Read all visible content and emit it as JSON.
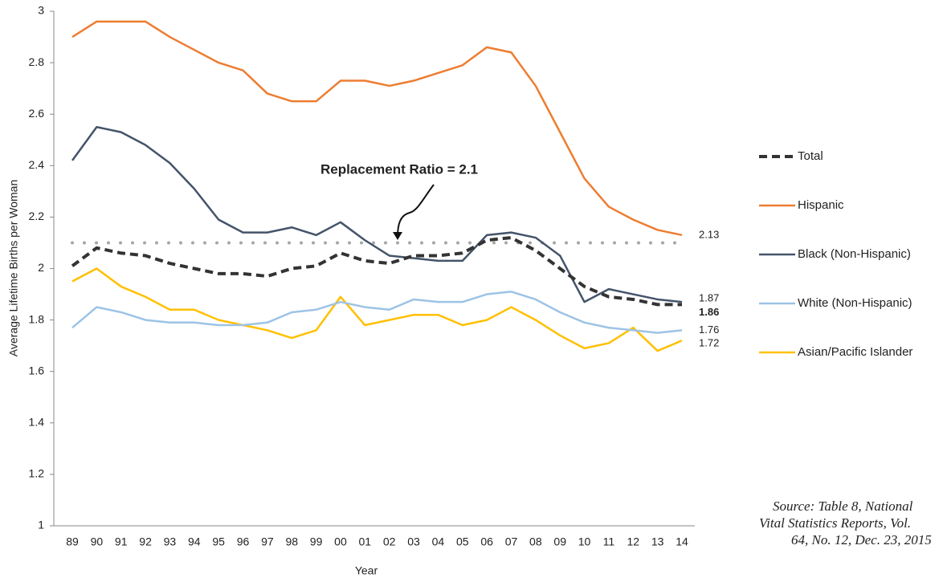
{
  "chart_data": {
    "type": "line",
    "y_label": "Average Lifetime Births per Woman",
    "x_label": "Year",
    "categories": [
      "89",
      "90",
      "91",
      "92",
      "93",
      "94",
      "95",
      "96",
      "97",
      "98",
      "99",
      "00",
      "01",
      "02",
      "03",
      "04",
      "05",
      "06",
      "07",
      "08",
      "09",
      "10",
      "11",
      "12",
      "13",
      "14"
    ],
    "series": [
      {
        "name": "Total",
        "color": "#333333",
        "style": "dashed",
        "values": [
          2.01,
          2.08,
          2.06,
          2.05,
          2.02,
          2.0,
          1.98,
          1.98,
          1.97,
          2.0,
          2.01,
          2.06,
          2.03,
          2.02,
          2.05,
          2.05,
          2.06,
          2.11,
          2.12,
          2.07,
          2.0,
          1.93,
          1.89,
          1.88,
          1.86,
          1.86
        ]
      },
      {
        "name": "Hispanic",
        "color": "#ed7d31",
        "style": "solid",
        "values": [
          2.9,
          2.96,
          2.96,
          2.96,
          2.9,
          2.85,
          2.8,
          2.77,
          2.68,
          2.65,
          2.65,
          2.73,
          2.73,
          2.71,
          2.73,
          2.76,
          2.79,
          2.86,
          2.84,
          2.71,
          2.53,
          2.35,
          2.24,
          2.19,
          2.15,
          2.13
        ]
      },
      {
        "name": "Black (Non-Hispanic)",
        "color": "#44546a",
        "style": "solid",
        "values": [
          2.42,
          2.55,
          2.53,
          2.48,
          2.41,
          2.31,
          2.19,
          2.14,
          2.14,
          2.16,
          2.13,
          2.18,
          2.11,
          2.05,
          2.04,
          2.03,
          2.03,
          2.13,
          2.14,
          2.12,
          2.05,
          1.87,
          1.92,
          1.9,
          1.88,
          1.87
        ]
      },
      {
        "name": "White (Non-Hispanic)",
        "color": "#9dc3e6",
        "style": "solid",
        "values": [
          1.77,
          1.85,
          1.83,
          1.8,
          1.79,
          1.79,
          1.78,
          1.78,
          1.79,
          1.83,
          1.84,
          1.87,
          1.85,
          1.84,
          1.88,
          1.87,
          1.87,
          1.9,
          1.91,
          1.88,
          1.83,
          1.79,
          1.77,
          1.76,
          1.75,
          1.76
        ]
      },
      {
        "name": "Asian/Pacific Islander",
        "color": "#ffc000",
        "style": "solid",
        "values": [
          1.95,
          2.0,
          1.93,
          1.89,
          1.84,
          1.84,
          1.8,
          1.78,
          1.76,
          1.73,
          1.76,
          1.89,
          1.78,
          1.8,
          1.82,
          1.82,
          1.78,
          1.8,
          1.85,
          1.8,
          1.74,
          1.69,
          1.71,
          1.77,
          1.68,
          1.72
        ]
      }
    ],
    "ylim": [
      1,
      3
    ],
    "yticks": [
      1,
      1.2,
      1.4,
      1.6,
      1.8,
      2,
      2.2,
      2.4,
      2.6,
      2.8,
      3
    ],
    "grid": false,
    "legend": "right",
    "reference_line": {
      "value": 2.1,
      "label": "Replacement Ratio = 2.1",
      "color": "#a6a6a6"
    },
    "source": [
      "Source: Table 8, National",
      "Vital Statistics Reports, Vol.",
      "64, No. 12, Dec. 23, 2015"
    ]
  }
}
